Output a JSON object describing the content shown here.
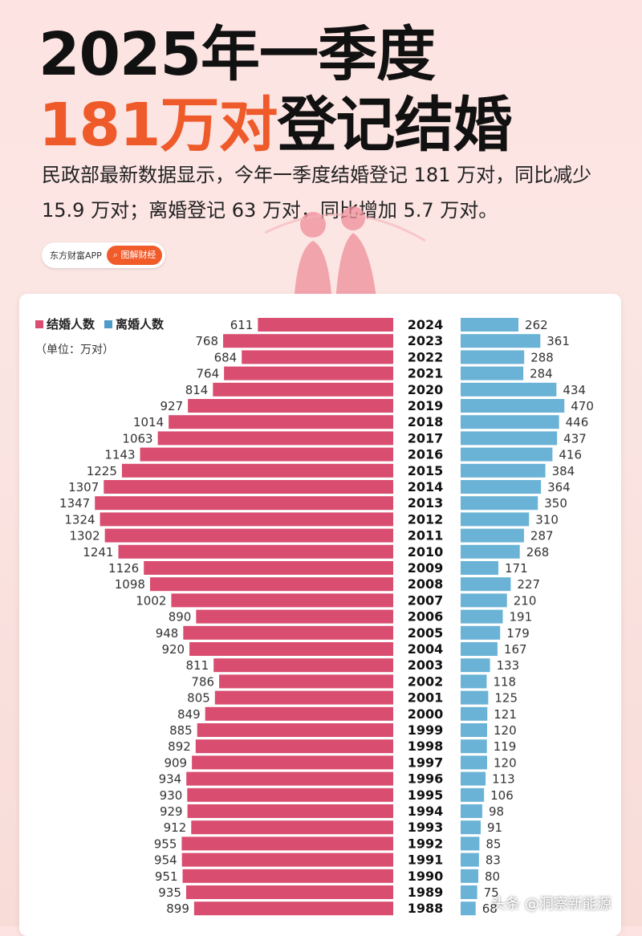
{
  "header": {
    "title_line1": "2025年一季度",
    "title_line2_highlight": "181万对",
    "title_line2_rest": "登记结婚",
    "description": "民政部最新数据显示，今年一季度结婚登记 181 万对，同比减少 15.9 万对；离婚登记 63 万对，同比增加 5.7 万对。"
  },
  "brand": {
    "app_name": "东方财富APP",
    "tag_label": "图解财经",
    "tag_icon": "search-icon"
  },
  "colors": {
    "marriage": "#d94d70",
    "divorce": "#6ab3d6",
    "accent": "#ef5a2a"
  },
  "chart_data": {
    "type": "bar",
    "orientation": "horizontal-butterfly",
    "legend": [
      "结婚人数",
      "离婚人数"
    ],
    "unit_label": "（单位：万对）",
    "categories": [
      "2024",
      "2023",
      "2022",
      "2021",
      "2020",
      "2019",
      "2018",
      "2017",
      "2016",
      "2015",
      "2014",
      "2013",
      "2012",
      "2011",
      "2010",
      "2009",
      "2008",
      "2007",
      "2006",
      "2005",
      "2004",
      "2003",
      "2002",
      "2001",
      "2000",
      "1999",
      "1998",
      "1997",
      "1996",
      "1995",
      "1994",
      "1993",
      "1992",
      "1991",
      "1990",
      "1989",
      "1988"
    ],
    "series": [
      {
        "name": "结婚人数",
        "values": [
          611,
          768,
          684,
          764,
          814,
          927,
          1014,
          1063,
          1143,
          1225,
          1307,
          1347,
          1324,
          1302,
          1241,
          1126,
          1098,
          1002,
          890,
          948,
          920,
          811,
          786,
          805,
          849,
          885,
          892,
          909,
          934,
          930,
          929,
          912,
          955,
          954,
          951,
          935,
          899
        ]
      },
      {
        "name": "离婚人数",
        "values": [
          262,
          361,
          288,
          284,
          434,
          470,
          446,
          437,
          416,
          384,
          364,
          350,
          310,
          287,
          268,
          171,
          227,
          210,
          191,
          179,
          167,
          133,
          118,
          125,
          121,
          120,
          119,
          120,
          113,
          106,
          98,
          91,
          85,
          83,
          80,
          75,
          68
        ]
      }
    ]
  },
  "watermark": "头条 @洞察新能源"
}
